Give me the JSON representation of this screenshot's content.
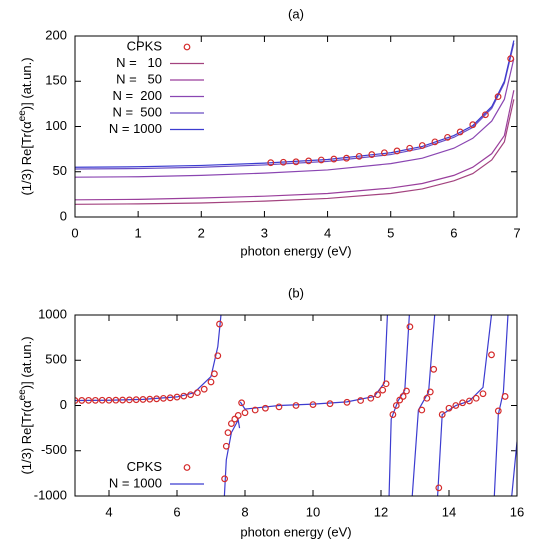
{
  "chart_data": [
    {
      "type": "line",
      "title": "(a)",
      "xlabel": "photon energy (eV)",
      "ylabel": [
        "(1/3) Re[Tr(α",
        "ee",
        ")] (at.un.)"
      ],
      "xlim": [
        0,
        7
      ],
      "xticks": [
        0,
        1,
        2,
        3,
        4,
        5,
        6,
        7
      ],
      "ylim": [
        0,
        200
      ],
      "yticks": [
        0,
        50,
        100,
        150,
        200
      ],
      "legend": "top-left",
      "series": [
        {
          "name": "CPKS",
          "style": "points",
          "color": "#d42a2a",
          "x": [
            3.1,
            3.3,
            3.5,
            3.7,
            3.9,
            4.1,
            4.3,
            4.5,
            4.7,
            4.9,
            5.1,
            5.3,
            5.5,
            5.7,
            5.9,
            6.1,
            6.3,
            6.5,
            6.7,
            6.9
          ],
          "values": [
            60,
            60.5,
            61,
            62,
            63,
            64,
            65,
            67,
            69,
            71,
            73,
            76,
            79,
            83,
            88,
            94,
            102,
            113,
            133,
            175
          ]
        },
        {
          "name": "N =   10",
          "style": "lines",
          "color": "#a3437f",
          "x": [
            0,
            1,
            2,
            3,
            4,
            5,
            5.5,
            6,
            6.3,
            6.6,
            6.8,
            6.95
          ],
          "values": [
            14,
            14.5,
            15.5,
            17.5,
            20.5,
            26,
            31,
            40,
            48,
            63,
            83,
            130
          ]
        },
        {
          "name": "N =   50",
          "style": "lines",
          "color": "#9a3f9c",
          "x": [
            0,
            1,
            2,
            3,
            4,
            5,
            5.5,
            6,
            6.3,
            6.6,
            6.8,
            6.95
          ],
          "values": [
            19,
            19.5,
            21,
            23,
            26,
            32,
            37,
            46,
            55,
            70,
            90,
            140
          ]
        },
        {
          "name": "N =  200",
          "style": "lines",
          "color": "#8a46b2",
          "x": [
            0,
            1,
            2,
            3,
            4,
            5,
            5.5,
            6,
            6.3,
            6.6,
            6.8,
            6.95
          ],
          "values": [
            44,
            44.5,
            46,
            48.5,
            52,
            59,
            65,
            76,
            87,
            106,
            130,
            175
          ]
        },
        {
          "name": "N =  500",
          "style": "lines",
          "color": "#6a4ec4",
          "x": [
            0,
            1,
            2,
            3,
            4,
            5,
            5.5,
            6,
            6.3,
            6.6,
            6.8,
            6.95
          ],
          "values": [
            53,
            53.5,
            55,
            57.5,
            61.5,
            69,
            76,
            88,
            99,
            120,
            148,
            192
          ]
        },
        {
          "name": "N = 1000",
          "style": "lines",
          "color": "#3c3cd0",
          "x": [
            0,
            1,
            2,
            3,
            4,
            5,
            5.5,
            6,
            6.3,
            6.6,
            6.8,
            6.95
          ],
          "values": [
            55,
            55.5,
            57,
            59.5,
            63.5,
            71,
            78,
            90,
            101,
            122,
            150,
            195
          ]
        }
      ]
    },
    {
      "type": "line",
      "title": "(b)",
      "xlabel": "photon energy (eV)",
      "ylabel": [
        "(1/3) Re[Tr(α",
        "ee",
        ")] (at.un.)"
      ],
      "xlim": [
        3,
        16
      ],
      "xticks": [
        4,
        6,
        8,
        10,
        12,
        14,
        16
      ],
      "ylim": [
        -1000,
        1000
      ],
      "yticks": [
        -1000,
        -500,
        0,
        500,
        1000
      ],
      "legend": "bottom-left",
      "series": [
        {
          "name": "CPKS",
          "style": "points",
          "color": "#d42a2a",
          "x": [
            3.0,
            3.2,
            3.4,
            3.6,
            3.8,
            4.0,
            4.2,
            4.4,
            4.6,
            4.8,
            5.0,
            5.2,
            5.4,
            5.6,
            5.8,
            6.0,
            6.2,
            6.4,
            6.6,
            6.8,
            7.0,
            7.1,
            7.2,
            7.25,
            7.4,
            7.45,
            7.5,
            7.6,
            7.7,
            7.8,
            7.9,
            8.0,
            8.3,
            8.6,
            9.0,
            9.5,
            10.0,
            10.5,
            11.0,
            11.4,
            11.7,
            11.9,
            12.05,
            12.15,
            12.35,
            12.45,
            12.55,
            12.65,
            12.75,
            12.85,
            13.2,
            13.35,
            13.45,
            13.55,
            13.7,
            13.8,
            14.0,
            14.2,
            14.4,
            14.6,
            14.8,
            15.0,
            15.25,
            15.45,
            15.65
          ],
          "values": [
            55,
            56,
            57,
            57,
            58,
            58,
            59,
            60,
            62,
            64,
            67,
            70,
            74,
            79,
            85,
            93,
            104,
            119,
            142,
            180,
            260,
            350,
            550,
            900,
            -810,
            -450,
            -300,
            -200,
            -150,
            -110,
            30,
            -80,
            -50,
            -30,
            -15,
            0,
            10,
            20,
            35,
            55,
            80,
            120,
            170,
            240,
            -100,
            0,
            60,
            100,
            160,
            870,
            -50,
            80,
            150,
            400,
            -910,
            -100,
            -30,
            0,
            30,
            50,
            80,
            130,
            560,
            -60,
            100
          ]
        },
        {
          "name": "N = 1000",
          "style": "lines",
          "color": "#3c3cd0",
          "x": [
            3,
            4,
            5,
            6,
            6.5,
            7,
            7.2,
            7.32,
            7.33,
            7.38,
            7.45,
            7.6,
            7.8,
            7.84,
            7.85,
            7.86,
            8.0,
            8.5,
            9,
            10,
            11,
            11.8,
            12.1,
            12.2,
            12.21,
            12.23,
            12.3,
            12.5,
            12.7,
            12.85,
            12.87,
            12.9,
            13.1,
            13.4,
            13.6,
            13.62,
            13.65,
            13.8,
            14.2,
            14.6,
            15,
            15.28,
            15.3,
            15.32,
            15.45,
            15.6,
            15.75,
            15.78,
            15.82,
            16
          ],
          "values": [
            55,
            58,
            68,
            95,
            140,
            320,
            650,
            1100,
            null,
            -1100,
            -600,
            -300,
            -160,
            -250,
            null,
            40,
            -40,
            -20,
            0,
            15,
            40,
            100,
            250,
            1100,
            null,
            -1100,
            -150,
            50,
            170,
            1100,
            null,
            -1100,
            -50,
            150,
            1100,
            null,
            -1100,
            -100,
            0,
            50,
            200,
            1100,
            null,
            -1100,
            -100,
            150,
            1100,
            null,
            -1100,
            -400
          ]
        }
      ]
    }
  ]
}
